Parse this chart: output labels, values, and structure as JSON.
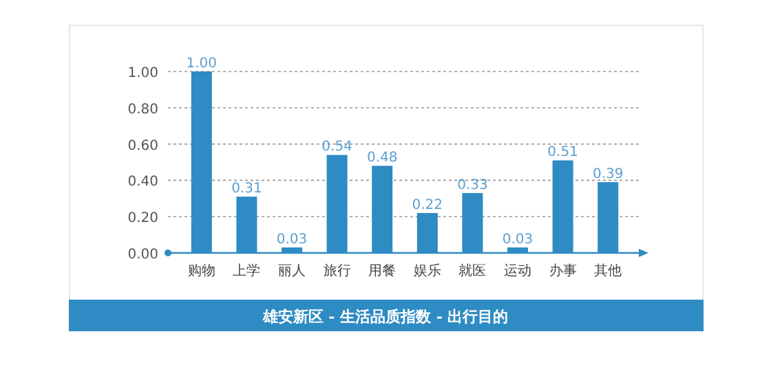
{
  "chart_data": {
    "type": "bar",
    "title": "雄安新区 - 生活品质指数 - 出行目的",
    "categories": [
      "购物",
      "上学",
      "丽人",
      "旅行",
      "用餐",
      "娱乐",
      "就医",
      "运动",
      "办事",
      "其他"
    ],
    "values": [
      1.0,
      0.31,
      0.03,
      0.54,
      0.48,
      0.22,
      0.33,
      0.03,
      0.51,
      0.39
    ],
    "value_labels": [
      "1.00",
      "0.31",
      "0.03",
      "0.54",
      "0.48",
      "0.22",
      "0.33",
      "0.03",
      "0.51",
      "0.39"
    ],
    "color": "#2e8bc3",
    "grid": "y",
    "ylim": [
      0,
      1
    ],
    "yticks": [
      {
        "value": 0,
        "label": "0.00"
      },
      {
        "value": 0.2,
        "label": "0.20"
      },
      {
        "value": 0.4,
        "label": "0.40"
      },
      {
        "value": 0.6,
        "label": "0.60"
      },
      {
        "value": 0.8,
        "label": "0.80"
      },
      {
        "value": 1,
        "label": "1.00"
      }
    ]
  }
}
